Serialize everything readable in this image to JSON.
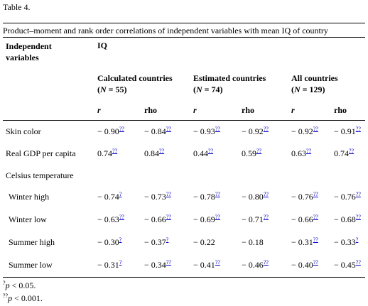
{
  "label": "Table 4.",
  "caption": "Product–moment and rank order correlations of independent variables with mean IQ of country",
  "header": {
    "stub": "Independent variables",
    "measure": "IQ",
    "groups": [
      {
        "name": "Calculated countries",
        "n": [
          "(",
          "N",
          " = 55)"
        ]
      },
      {
        "name": "Estimated countries",
        "n": [
          "(",
          "N",
          " = 74)"
        ]
      },
      {
        "name": "All countries",
        "n": [
          "(",
          "N",
          " = 129)"
        ]
      }
    ],
    "columns": [
      "r",
      "rho",
      "r",
      "rho",
      "r",
      "rho"
    ]
  },
  "table": {
    "rows": [
      {
        "label": "Skin color",
        "cells": [
          {
            "text": "− 0.90",
            "note": "??"
          },
          {
            "text": "− 0.84",
            "note": "??"
          },
          {
            "text": "− 0.93",
            "note": "??"
          },
          {
            "text": "− 0.92",
            "note": "??"
          },
          {
            "text": "− 0.92",
            "note": "??"
          },
          {
            "text": "− 0.91",
            "note": "??"
          }
        ]
      },
      {
        "label": "Real GDP per capita",
        "cells": [
          {
            "text": "0.74",
            "note": "??"
          },
          {
            "text": "0.84",
            "note": "??"
          },
          {
            "text": "0.44",
            "note": "??"
          },
          {
            "text": "0.59",
            "note": "??"
          },
          {
            "text": "0.63",
            "note": "??"
          },
          {
            "text": "0.74",
            "note": "??"
          }
        ]
      },
      {
        "label": "Celsius temperature",
        "cells": []
      },
      {
        "label": "Winter high",
        "cells": [
          {
            "text": "− 0.74",
            "note": "?"
          },
          {
            "text": "− 0.73",
            "note": "??"
          },
          {
            "text": "− 0.78",
            "note": "??"
          },
          {
            "text": "− 0.80",
            "note": "??"
          },
          {
            "text": "− 0.76",
            "note": "??"
          },
          {
            "text": "− 0.76",
            "note": "??"
          }
        ]
      },
      {
        "label": "Winter low",
        "cells": [
          {
            "text": "− 0.63",
            "note": "??"
          },
          {
            "text": "− 0.66",
            "note": "??"
          },
          {
            "text": "− 0.69",
            "note": "??"
          },
          {
            "text": "− 0.71",
            "note": "??"
          },
          {
            "text": "− 0.66",
            "note": "??"
          },
          {
            "text": "− 0.68",
            "note": "??"
          }
        ]
      },
      {
        "label": "Summer high",
        "cells": [
          {
            "text": "− 0.30",
            "note": "?"
          },
          {
            "text": "− 0.37",
            "note": "?"
          },
          {
            "text": "− 0.22"
          },
          {
            "text": "− 0.18"
          },
          {
            "text": "− 0.31",
            "note": "??"
          },
          {
            "text": "− 0.33",
            "note": "?"
          }
        ]
      },
      {
        "label": "Summer low",
        "cells": [
          {
            "text": "− 0.31",
            "note": "?"
          },
          {
            "text": "− 0.34",
            "note": "??"
          },
          {
            "text": "− 0.41",
            "note": "??"
          },
          {
            "text": "− 0.46",
            "note": "??"
          },
          {
            "text": "− 0.40",
            "note": "??"
          },
          {
            "text": "− 0.45",
            "note": "??"
          }
        ]
      }
    ]
  },
  "footnotes": [
    {
      "mark": "?",
      "var": "p",
      "text": " < 0.05."
    },
    {
      "mark": "??",
      "var": "p",
      "text": " < 0.001."
    }
  ]
}
